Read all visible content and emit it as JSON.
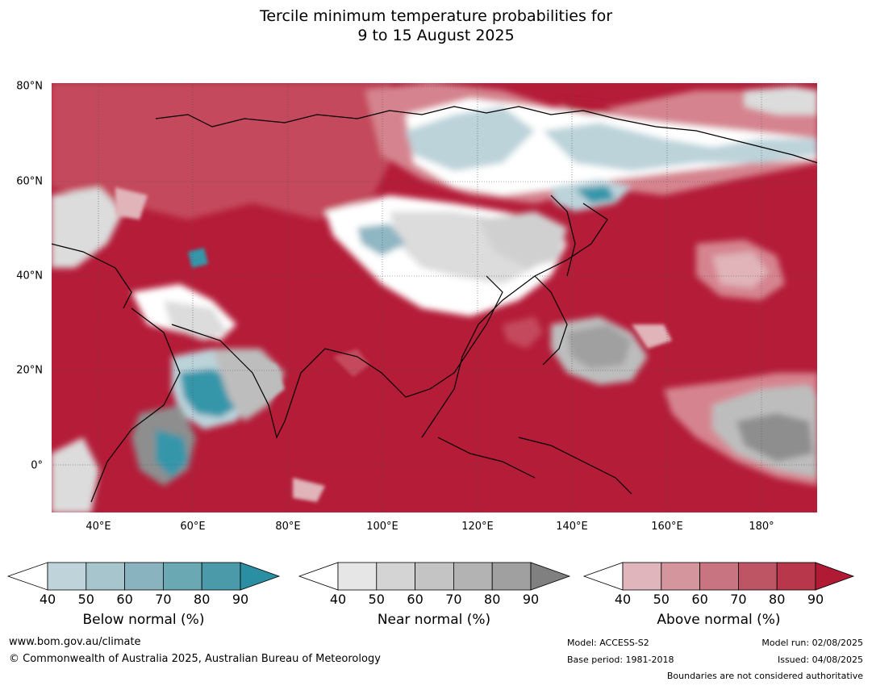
{
  "title_line1": "Tercile minimum temperature probabilities for",
  "title_line2": "9 to 15 August 2025",
  "map": {
    "lat_labels": [
      "80°N",
      "60°N",
      "40°N",
      "20°N",
      "0°"
    ],
    "lon_labels": [
      "40°E",
      "60°E",
      "80°E",
      "100°E",
      "120°E",
      "140°E",
      "160°E",
      "180°"
    ],
    "colors": {
      "ocean_dark_red": "#b41c38",
      "red_mid": "#c44a5c",
      "red_light": "#d5848f",
      "red_pale": "#e0b4b9",
      "white": "#ffffff",
      "grey_light": "#dcdcdc",
      "grey_mid": "#bdbdbd",
      "grey_dark": "#8e8e8e",
      "blue_pale": "#bcd3da",
      "blue_mid": "#8fb6c3",
      "blue_dark": "#3696aa"
    }
  },
  "colorbars": [
    {
      "name": "Below normal (%)",
      "ticks": [
        "40",
        "50",
        "60",
        "70",
        "80",
        "90"
      ],
      "colors": [
        "#bfd3da",
        "#a6c5cc",
        "#89b3be",
        "#6aa9b4",
        "#4a9aaa",
        "#2a8fa3"
      ]
    },
    {
      "name": "Near normal (%)",
      "ticks": [
        "40",
        "50",
        "60",
        "70",
        "80",
        "90"
      ],
      "colors": [
        "#e6e6e6",
        "#d4d4d4",
        "#c4c4c4",
        "#b3b3b3",
        "#a0a0a0",
        "#808080"
      ]
    },
    {
      "name": "Above normal (%)",
      "ticks": [
        "40",
        "50",
        "60",
        "70",
        "80",
        "90"
      ],
      "colors": [
        "#e0b6bc",
        "#d5959c",
        "#c97481",
        "#be5565",
        "#b8374b",
        "#b01a35"
      ]
    }
  ],
  "footer": {
    "website": "www.bom.gov.au/climate",
    "copyright": "© Commonwealth of Australia 2025, Australian Bureau of Meteorology",
    "model": "Model: ACCESS-S2",
    "base_period": "Base period: 1981-2018",
    "model_run": "Model run: 02/08/2025",
    "issued": "Issued: 04/08/2025",
    "boundaries": "Boundaries are not considered authoritative"
  }
}
